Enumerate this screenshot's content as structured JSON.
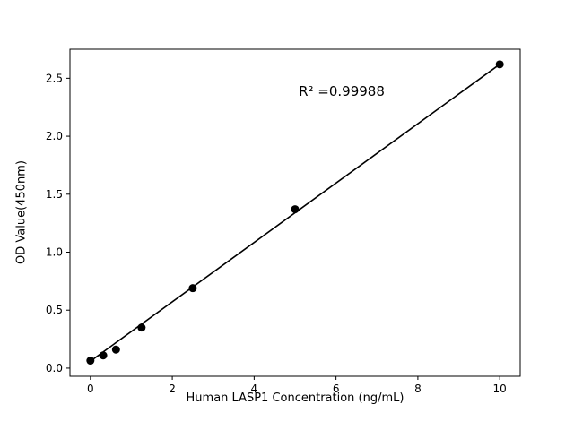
{
  "figure": {
    "background": "#ffffff"
  },
  "chart_data": {
    "type": "scatter",
    "title": "",
    "xlabel": "Human LASP1 Concentration (ng/mL)",
    "ylabel": "OD Value(450nm)",
    "annotation": "R² =0.99988",
    "x": [
      0,
      0.3125,
      0.625,
      1.25,
      2.5,
      5,
      10
    ],
    "y": [
      0.065,
      0.11,
      0.16,
      0.35,
      0.69,
      1.37,
      2.62
    ],
    "fit_line": {
      "x": [
        0,
        10
      ],
      "y": [
        0.06,
        2.62
      ]
    },
    "xlim": [
      -0.5,
      10.5
    ],
    "ylim": [
      -0.07,
      2.75
    ],
    "xticks": [
      0,
      2,
      4,
      6,
      8,
      10
    ],
    "xtick_labels": [
      "0",
      "2",
      "4",
      "6",
      "8",
      "10"
    ],
    "yticks": [
      0.0,
      0.5,
      1.0,
      1.5,
      2.0,
      2.5
    ],
    "ytick_labels": [
      "0.0",
      "0.5",
      "1.0",
      "1.5",
      "2.0",
      "2.5"
    ],
    "marker_color": "#000000",
    "line_color": "#000000",
    "axis_color": "#000000",
    "grid": false,
    "legend_position": "none"
  }
}
